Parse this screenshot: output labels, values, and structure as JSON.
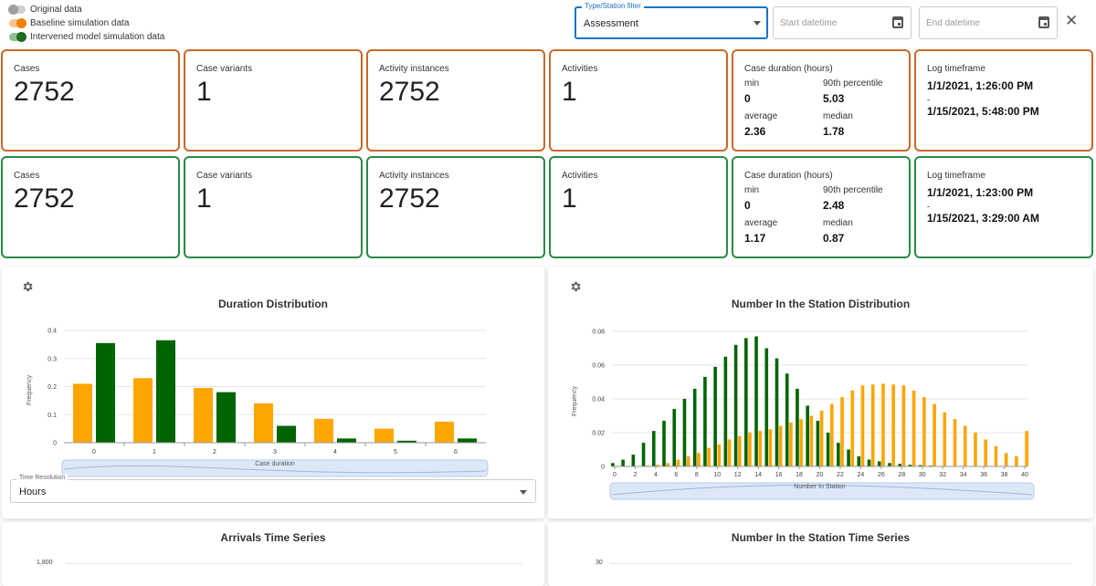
{
  "legend": [
    {
      "label": "Original data",
      "color": "#9e9e9e"
    },
    {
      "label": "Baseline simulation data",
      "color": "#f08000"
    },
    {
      "label": "Intervened model simulation data",
      "color": "#1f6b1f"
    }
  ],
  "filter": {
    "label": "Type/Station filter",
    "value": "Assessment"
  },
  "start_date": {
    "placeholder": "Start datetime"
  },
  "end_date": {
    "placeholder": "End datetime"
  },
  "close_symbol": "✕",
  "colors": {
    "baseline_border": "#c8692a",
    "intervened_border": "#2a8a45",
    "baseline_bar": "#ffa500",
    "intervened_bar": "#006400"
  },
  "baseline_cards": {
    "cases_label": "Cases",
    "cases": "2752",
    "variants_label": "Case variants",
    "variants": "1",
    "instances_label": "Activity instances",
    "instances": "2752",
    "activities_label": "Activities",
    "activities": "1",
    "duration_label": "Case duration (hours)",
    "min_label": "min",
    "min": "0",
    "p90_label": "90th percentile",
    "p90": "5.03",
    "avg_label": "average",
    "avg": "2.36",
    "median_label": "median",
    "median": "1.78",
    "timeframe_label": "Log timeframe",
    "timeframe_start": "1/1/2021, 1:26:00 PM",
    "timeframe_sep": "-",
    "timeframe_end": "1/15/2021, 5:48:00 PM"
  },
  "intervened_cards": {
    "cases_label": "Cases",
    "cases": "2752",
    "variants_label": "Case variants",
    "variants": "1",
    "instances_label": "Activity instances",
    "instances": "2752",
    "activities_label": "Activities",
    "activities": "1",
    "duration_label": "Case duration (hours)",
    "min_label": "min",
    "min": "0",
    "p90_label": "90th percentile",
    "p90": "2.48",
    "avg_label": "average",
    "avg": "1.17",
    "median_label": "median",
    "median": "0.87",
    "timeframe_label": "Log timeframe",
    "timeframe_start": "1/1/2021, 1:23:00 PM",
    "timeframe_sep": "-",
    "timeframe_end": "1/15/2021, 3:29:00 AM"
  },
  "time_resolution": {
    "label": "Time Resolution",
    "value": "Hours"
  },
  "lower_panels": {
    "arrivals_title": "Arrivals Time Series",
    "arrivals_tick": "1,800",
    "station_ts_title": "Number In the Station Time Series",
    "station_ts_tick": "30"
  },
  "chart_data": [
    {
      "type": "bar",
      "title": "Duration Distribution",
      "xlabel": "Case duration",
      "ylabel": "Frequency",
      "ylim": [
        0,
        0.4
      ],
      "yticks": [
        0,
        0.1,
        0.2,
        0.3,
        0.4
      ],
      "categories": [
        "0",
        "1",
        "2",
        "3",
        "4",
        "5",
        "6"
      ],
      "series": [
        {
          "values": [
            0.21,
            0.23,
            0.195,
            0.14,
            0.085,
            0.05,
            0.075
          ]
        },
        {
          "values": [
            0.355,
            0.365,
            0.18,
            0.06,
            0.015,
            0.007,
            0.015
          ]
        }
      ]
    },
    {
      "type": "bar",
      "title": "Number In the Station Distribution",
      "xlabel": "Number In Station",
      "ylabel": "Frequency",
      "ylim": [
        0,
        0.08
      ],
      "yticks": [
        0,
        0.02,
        0.04,
        0.06,
        0.08
      ],
      "xtick_labels": [
        "0",
        "2",
        "4",
        "6",
        "8",
        "10",
        "12",
        "14",
        "16",
        "18",
        "20",
        "22",
        "24",
        "26",
        "28",
        "30",
        "32",
        "34",
        "36",
        "38",
        "40"
      ],
      "x": [
        0,
        1,
        2,
        3,
        4,
        5,
        6,
        7,
        8,
        9,
        10,
        11,
        12,
        13,
        14,
        15,
        16,
        17,
        18,
        19,
        20,
        21,
        22,
        23,
        24,
        25,
        26,
        27,
        28,
        29,
        30,
        31,
        32,
        33,
        34,
        35,
        36,
        37,
        38,
        39,
        40
      ],
      "series": [
        {
          "values": [
            0,
            0,
            0,
            0.0005,
            0.001,
            0.002,
            0.004,
            0.006,
            0.008,
            0.011,
            0.013,
            0.016,
            0.018,
            0.02,
            0.021,
            0.022,
            0.024,
            0.026,
            0.028,
            0.03,
            0.033,
            0.037,
            0.041,
            0.045,
            0.048,
            0.0485,
            0.049,
            0.0485,
            0.048,
            0.045,
            0.041,
            0.037,
            0.032,
            0.028,
            0.024,
            0.02,
            0.016,
            0.012,
            0.008,
            0.006,
            0.021
          ]
        },
        {
          "values": [
            0.002,
            0.004,
            0.007,
            0.014,
            0.021,
            0.027,
            0.034,
            0.04,
            0.046,
            0.053,
            0.059,
            0.065,
            0.072,
            0.076,
            0.077,
            0.07,
            0.064,
            0.055,
            0.046,
            0.036,
            0.027,
            0.02,
            0.014,
            0.01,
            0.006,
            0.004,
            0.003,
            0.002,
            0.0015,
            0.001,
            0.0008,
            0.0005,
            0.0003,
            0.0002,
            0.0001,
            0,
            0,
            0,
            0,
            0,
            0
          ]
        }
      ]
    }
  ]
}
